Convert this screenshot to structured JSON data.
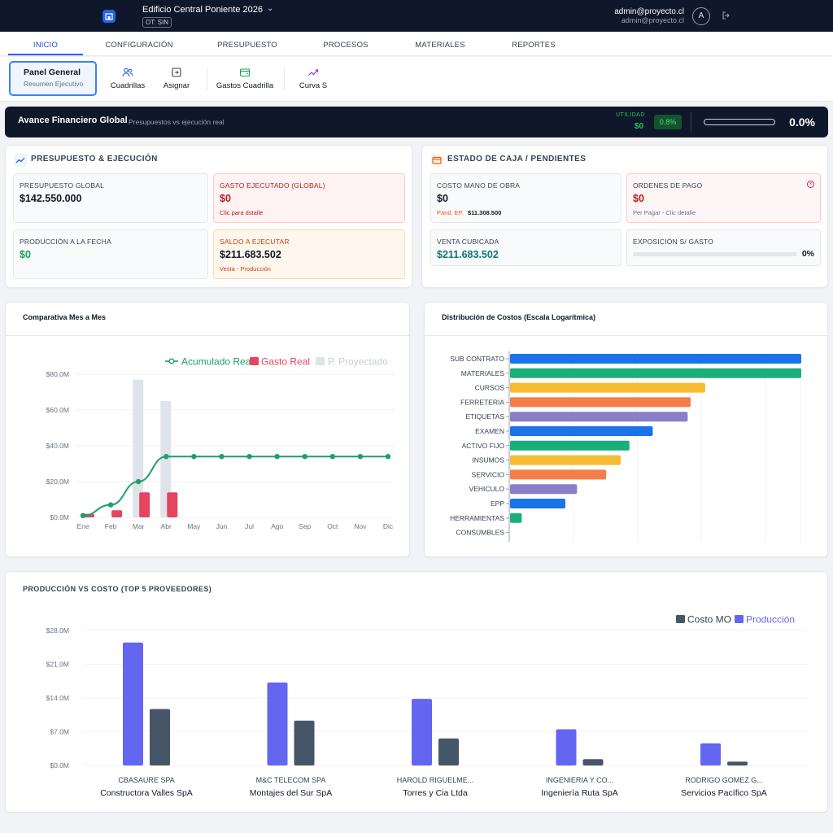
{
  "topbar": {
    "project_title": "Edificio Central Poniente 2026",
    "project_badge": "OT: SIN",
    "user_email": "admin@proyecto.cl",
    "user_email_secondary": "admin@proyecto.cl",
    "avatar_initial": "A"
  },
  "tabs": [
    "INICIO",
    "CONFIGURACIÓN",
    "PRESUPUESTO",
    "PROCESOS",
    "MATERIALES",
    "REPORTES"
  ],
  "subnav": {
    "panel_title": "Panel General",
    "panel_subtitle": "Resumen Ejecutivo",
    "items": [
      "Cuadrillas",
      "Asignar",
      "Gastos Cuadrilla",
      "Curva S"
    ]
  },
  "banner": {
    "title": "Avance Financiero Global",
    "subtitle": "Presupuestos vs ejecución real",
    "utilidad_label": "UTILIDAD",
    "utilidad_value": "$0",
    "utilidad_pct": "0.8%",
    "progress_pct_text": "0.0%",
    "progress_fraction": 0.0
  },
  "presupuesto": {
    "title": "PRESUPUESTO & EJECUCIÓN",
    "global_label": "PRESUPUESTO GLOBAL",
    "global_value": "$142.550.000",
    "gasto_label": "GASTO EJECUTADO (GLOBAL)",
    "gasto_value": "$0",
    "gasto_note": "Clic para dstalle",
    "produccion_label": "PRODUCCIÓN A LA FECHA",
    "produccion_value": "$0",
    "saldo_label": "SALDO A EJECUTAR",
    "saldo_value": "$211.683.502",
    "saldo_note": "Vesta - Producción"
  },
  "caja": {
    "title": "ESTADO DE CAJA / PENDIENTES",
    "mano_obra_label": "COSTO MANO DE OBRA",
    "mano_obra_value": "$0",
    "pend_label": "Pand. EP.",
    "pend_value": "$11.308.500",
    "ordenes_label": "ORDENES DE PAGO",
    "ordenes_value": "$0",
    "ordenes_note": "Per Pagar - Clic detalle",
    "venta_label": "VENTA CUBICADA",
    "venta_value": "$211.683.502",
    "exposicion_label": "EXPOSICIÓN S/ GASTO",
    "exposicion_pct_text": "0%",
    "exposicion_fraction": 0.0
  },
  "colors": {
    "accent": "#2563eb",
    "green": "#16a34a",
    "red": "#e11d48",
    "gray_bar": "#dfe3ea",
    "purple": "#6366f1",
    "slate": "#475569"
  },
  "chart_data": [
    {
      "type": "bar",
      "title": "Comparativa Mes a Mes",
      "categories": [
        "Ene",
        "Feb",
        "Mar",
        "Abr",
        "May",
        "Jun",
        "Jul",
        "Ago",
        "Sep",
        "Oct",
        "Nov",
        "Dic"
      ],
      "ylim": [
        0,
        80
      ],
      "yticks": [
        "$0.0M",
        "$20.0M",
        "$40.0M",
        "$60.0M",
        "$80.0M"
      ],
      "legend_position": "top-right",
      "series": [
        {
          "name": "Acumulado Real",
          "kind": "line",
          "color": "#1f9d6b",
          "values": [
            1,
            7,
            20,
            34,
            34,
            34,
            34,
            34,
            34,
            34,
            34,
            34
          ]
        },
        {
          "name": "Gasto Real",
          "kind": "bar",
          "color": "#e5455e",
          "values": [
            2,
            4,
            14,
            14,
            0,
            0,
            0,
            0,
            0,
            0,
            0,
            0
          ]
        },
        {
          "name": "P. Proyectado",
          "kind": "bar",
          "color": "#dfe3ea",
          "values": [
            0,
            0,
            77,
            65,
            0,
            0,
            0,
            0,
            0,
            0,
            0,
            0
          ]
        }
      ]
    },
    {
      "type": "bar",
      "orientation": "horizontal",
      "title": "Distribución de Costos (Escala Logarítmica)",
      "categories": [
        "SUB CONTRATO",
        "MATERIALES",
        "CURSOS",
        "FERRETERIA",
        "ETIQUETAS",
        "EXAMEN",
        "ACTIVO FIJO",
        "INSUMOS",
        "SERVICIO",
        "VEHICULO",
        "EPP",
        "HERRAMIENTAS",
        "CONSUMBLES"
      ],
      "values": [
        1.0,
        1.0,
        0.67,
        0.62,
        0.61,
        0.49,
        0.41,
        0.38,
        0.33,
        0.23,
        0.19,
        0.04,
        0
      ],
      "colors": [
        "#1a73e8",
        "#1aae7b",
        "#f6bb2e",
        "#f47d48",
        "#8b7ec8",
        "#1a73e8",
        "#1aae7b",
        "#f6bb2e",
        "#f47d48",
        "#8b7ec8",
        "#1a73e8",
        "#1aae7b",
        "#f6bb2e"
      ]
    },
    {
      "type": "bar",
      "title": "PRODUCCIÓN VS COSTO (TOP 5 PROVEEDORES)",
      "categories": [
        "CBASAURE SPA",
        "M&C TELECOM SPA",
        "HAROLD RIGUELME...",
        "INGENIERIA Y CO...",
        "RODRIGO GOMEZ G..."
      ],
      "subcategories": [
        "Constructora Valles SpA",
        "Montajes del Sur SpA",
        "Torres y Cia Ltda",
        "Ingeniería Ruta SpA",
        "Servicios Pacífico SpA"
      ],
      "ylim": [
        0,
        28
      ],
      "yticks": [
        "$0.0M",
        "$7.0M",
        "$14.0M",
        "$21.0M",
        "$28.0M"
      ],
      "legend_position": "top-right",
      "series": [
        {
          "name": "Producción",
          "color": "#6366f1",
          "values": [
            25.5,
            17.2,
            13.8,
            7.5,
            4.6
          ]
        },
        {
          "name": "Costo MO",
          "color": "#475569",
          "values": [
            11.7,
            9.3,
            5.6,
            1.3,
            0.8
          ]
        }
      ]
    }
  ]
}
